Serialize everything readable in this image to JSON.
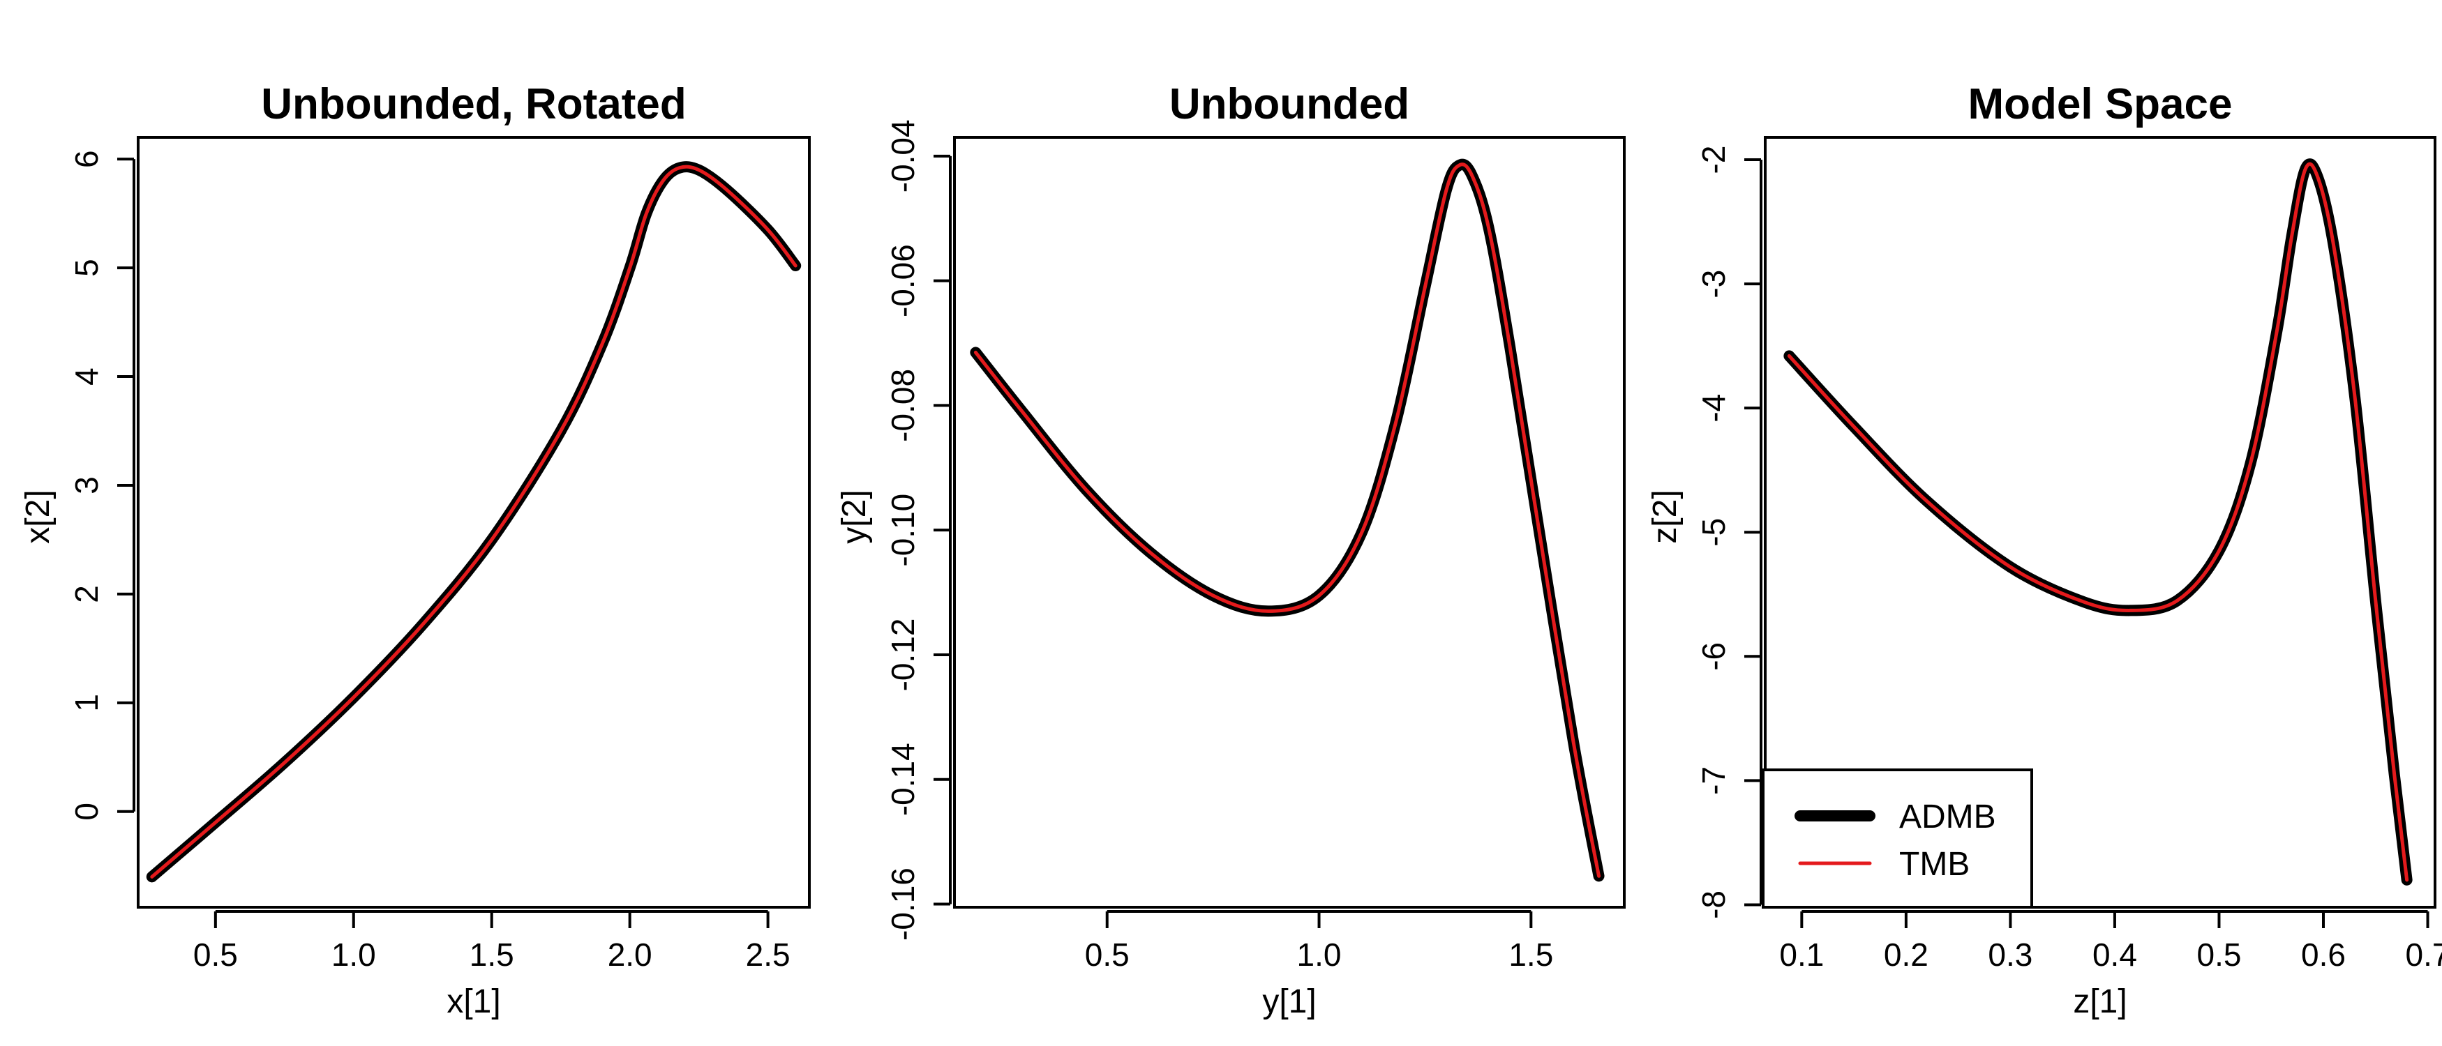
{
  "colors": {
    "admb": "#000000",
    "tmb": "#e41a1c"
  },
  "chart_data": [
    {
      "type": "line",
      "title": "Unbounded, Rotated",
      "xlabel": "x[1]",
      "ylabel": "x[2]",
      "xlim": [
        0.22,
        2.65
      ],
      "ylim": [
        -0.88,
        6.2
      ],
      "xticks": [
        0.5,
        1.0,
        1.5,
        2.0,
        2.5
      ],
      "xtick_labels": [
        "0.5",
        "1.0",
        "1.5",
        "2.0",
        "2.5"
      ],
      "yticks": [
        0,
        1,
        2,
        3,
        4,
        5,
        6
      ],
      "ytick_labels": [
        "0",
        "1",
        "2",
        "3",
        "4",
        "5",
        "6"
      ],
      "series": [
        {
          "name": "ADMB",
          "x": [
            0.27,
            0.5,
            0.75,
            1.0,
            1.25,
            1.5,
            1.75,
            1.9,
            2.0,
            2.06,
            2.12,
            2.18,
            2.25,
            2.35,
            2.5,
            2.6
          ],
          "y": [
            -0.6,
            -0.1,
            0.45,
            1.05,
            1.72,
            2.5,
            3.5,
            4.3,
            5.0,
            5.5,
            5.8,
            5.92,
            5.9,
            5.72,
            5.35,
            5.02
          ]
        },
        {
          "name": "TMB",
          "x": [
            0.27,
            0.5,
            0.75,
            1.0,
            1.25,
            1.5,
            1.75,
            1.9,
            2.0,
            2.06,
            2.12,
            2.18,
            2.25,
            2.35,
            2.5,
            2.6
          ],
          "y": [
            -0.6,
            -0.1,
            0.45,
            1.05,
            1.72,
            2.5,
            3.5,
            4.3,
            5.0,
            5.5,
            5.8,
            5.92,
            5.9,
            5.72,
            5.35,
            5.02
          ]
        }
      ],
      "legend": null
    },
    {
      "type": "line",
      "title": "Unbounded",
      "xlabel": "y[1]",
      "ylabel": "y[2]",
      "xlim": [
        0.14,
        1.72
      ],
      "ylim": [
        -0.1605,
        -0.037
      ],
      "xticks": [
        0.5,
        1.0,
        1.5
      ],
      "xtick_labels": [
        "0.5",
        "1.0",
        "1.5"
      ],
      "yticks": [
        -0.16,
        -0.14,
        -0.12,
        -0.1,
        -0.08,
        -0.06,
        -0.04
      ],
      "ytick_labels": [
        "-0.16",
        "-0.14",
        "-0.12",
        "-0.10",
        "-0.08",
        "-0.06",
        "-0.04"
      ],
      "series": [
        {
          "name": "ADMB",
          "x": [
            0.19,
            0.3,
            0.45,
            0.6,
            0.75,
            0.88,
            1.0,
            1.1,
            1.18,
            1.25,
            1.3,
            1.33,
            1.36,
            1.4,
            1.45,
            1.52,
            1.6,
            1.66
          ],
          "y": [
            -0.0715,
            -0.081,
            -0.0935,
            -0.1035,
            -0.1105,
            -0.113,
            -0.1105,
            -0.1005,
            -0.083,
            -0.061,
            -0.0455,
            -0.0415,
            -0.043,
            -0.0515,
            -0.0705,
            -0.1005,
            -0.134,
            -0.1555
          ]
        },
        {
          "name": "TMB",
          "x": [
            0.19,
            0.3,
            0.45,
            0.6,
            0.75,
            0.88,
            1.0,
            1.1,
            1.18,
            1.25,
            1.3,
            1.33,
            1.36,
            1.4,
            1.45,
            1.52,
            1.6,
            1.66
          ],
          "y": [
            -0.0715,
            -0.081,
            -0.0935,
            -0.1035,
            -0.1105,
            -0.113,
            -0.1105,
            -0.1005,
            -0.083,
            -0.061,
            -0.0455,
            -0.0415,
            -0.043,
            -0.0515,
            -0.0705,
            -0.1005,
            -0.134,
            -0.1555
          ]
        }
      ],
      "legend": null
    },
    {
      "type": "line",
      "title": "Model Space",
      "xlabel": "z[1]",
      "ylabel": "z[2]",
      "xlim": [
        0.065,
        0.707
      ],
      "ylim": [
        -8.02,
        -1.82
      ],
      "xticks": [
        0.1,
        0.2,
        0.3,
        0.4,
        0.5,
        0.6,
        0.7
      ],
      "xtick_labels": [
        "0.1",
        "0.2",
        "0.3",
        "0.4",
        "0.5",
        "0.6",
        "0.7"
      ],
      "yticks": [
        -8,
        -7,
        -6,
        -5,
        -4,
        -3,
        -2
      ],
      "ytick_labels": [
        "-8",
        "-7",
        "-6",
        "-5",
        "-4",
        "-3",
        "-2"
      ],
      "series": [
        {
          "name": "ADMB",
          "x": [
            0.088,
            0.15,
            0.22,
            0.3,
            0.37,
            0.415,
            0.46,
            0.5,
            0.53,
            0.555,
            0.57,
            0.583,
            0.595,
            0.61,
            0.63,
            0.65,
            0.668,
            0.68
          ],
          "y": [
            -3.58,
            -4.15,
            -4.75,
            -5.28,
            -5.56,
            -5.63,
            -5.55,
            -5.15,
            -4.45,
            -3.4,
            -2.6,
            -2.07,
            -2.15,
            -2.7,
            -3.9,
            -5.55,
            -6.95,
            -7.8
          ]
        },
        {
          "name": "TMB",
          "x": [
            0.088,
            0.15,
            0.22,
            0.3,
            0.37,
            0.415,
            0.46,
            0.5,
            0.53,
            0.555,
            0.57,
            0.583,
            0.595,
            0.61,
            0.63,
            0.65,
            0.668,
            0.68
          ],
          "y": [
            -3.58,
            -4.15,
            -4.75,
            -5.28,
            -5.56,
            -5.63,
            -5.55,
            -5.15,
            -4.45,
            -3.4,
            -2.6,
            -2.07,
            -2.15,
            -2.7,
            -3.9,
            -5.55,
            -6.95,
            -7.8
          ]
        }
      ],
      "legend": {
        "position": "bottom-left",
        "entries": [
          "ADMB",
          "TMB"
        ]
      }
    }
  ]
}
